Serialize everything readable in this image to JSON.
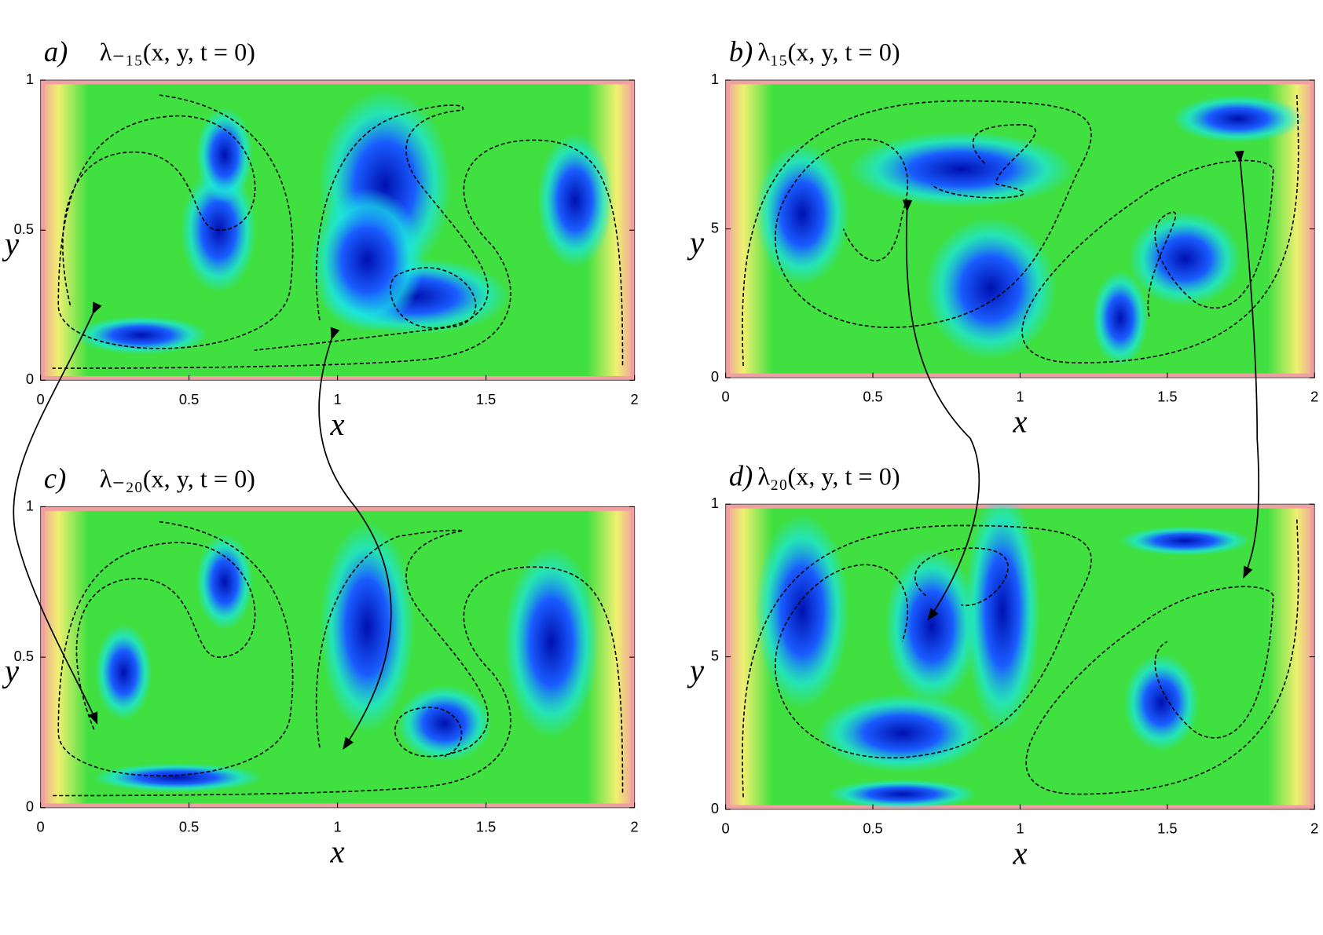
{
  "chart_data": [
    {
      "type": "field",
      "label": "a)",
      "title": "λ₋₁₅(x, y, t = 0)",
      "xlabel": "x",
      "ylabel": "y",
      "xlim": [
        0,
        2
      ],
      "ylim": [
        0,
        1
      ],
      "xticks": [
        0,
        0.5,
        1,
        1.5,
        2
      ],
      "yticks": [
        0,
        0.5,
        1
      ]
    },
    {
      "type": "field",
      "label": "b)",
      "title": "λ₁₅(x, y, t = 0)",
      "xlabel": "x",
      "ylabel": "y",
      "xlim": [
        0,
        2
      ],
      "ylim": [
        0,
        1
      ],
      "xticks": [
        0,
        0.5,
        1,
        1.5,
        2
      ],
      "yticks": [
        0,
        {
          "value": 0.5,
          "label": "5"
        },
        1
      ]
    },
    {
      "type": "field",
      "label": "c)",
      "title": "λ₋₂₀(x, y, t = 0)",
      "xlabel": "x",
      "ylabel": "y",
      "xlim": [
        0,
        2
      ],
      "ylim": [
        0,
        1
      ],
      "xticks": [
        0,
        0.5,
        1,
        1.5,
        2
      ],
      "yticks": [
        0,
        0.5,
        1
      ]
    },
    {
      "type": "field",
      "label": "d)",
      "title": "λ₂₀(x, y, t = 0)",
      "xlabel": "x",
      "ylabel": "y",
      "xlim": [
        0,
        2
      ],
      "ylim": [
        0,
        1
      ],
      "xticks": [
        0,
        0.5,
        1,
        1.5,
        2
      ],
      "yticks": [
        0,
        {
          "value": 0.5,
          "label": "5"
        },
        1
      ]
    }
  ]
}
